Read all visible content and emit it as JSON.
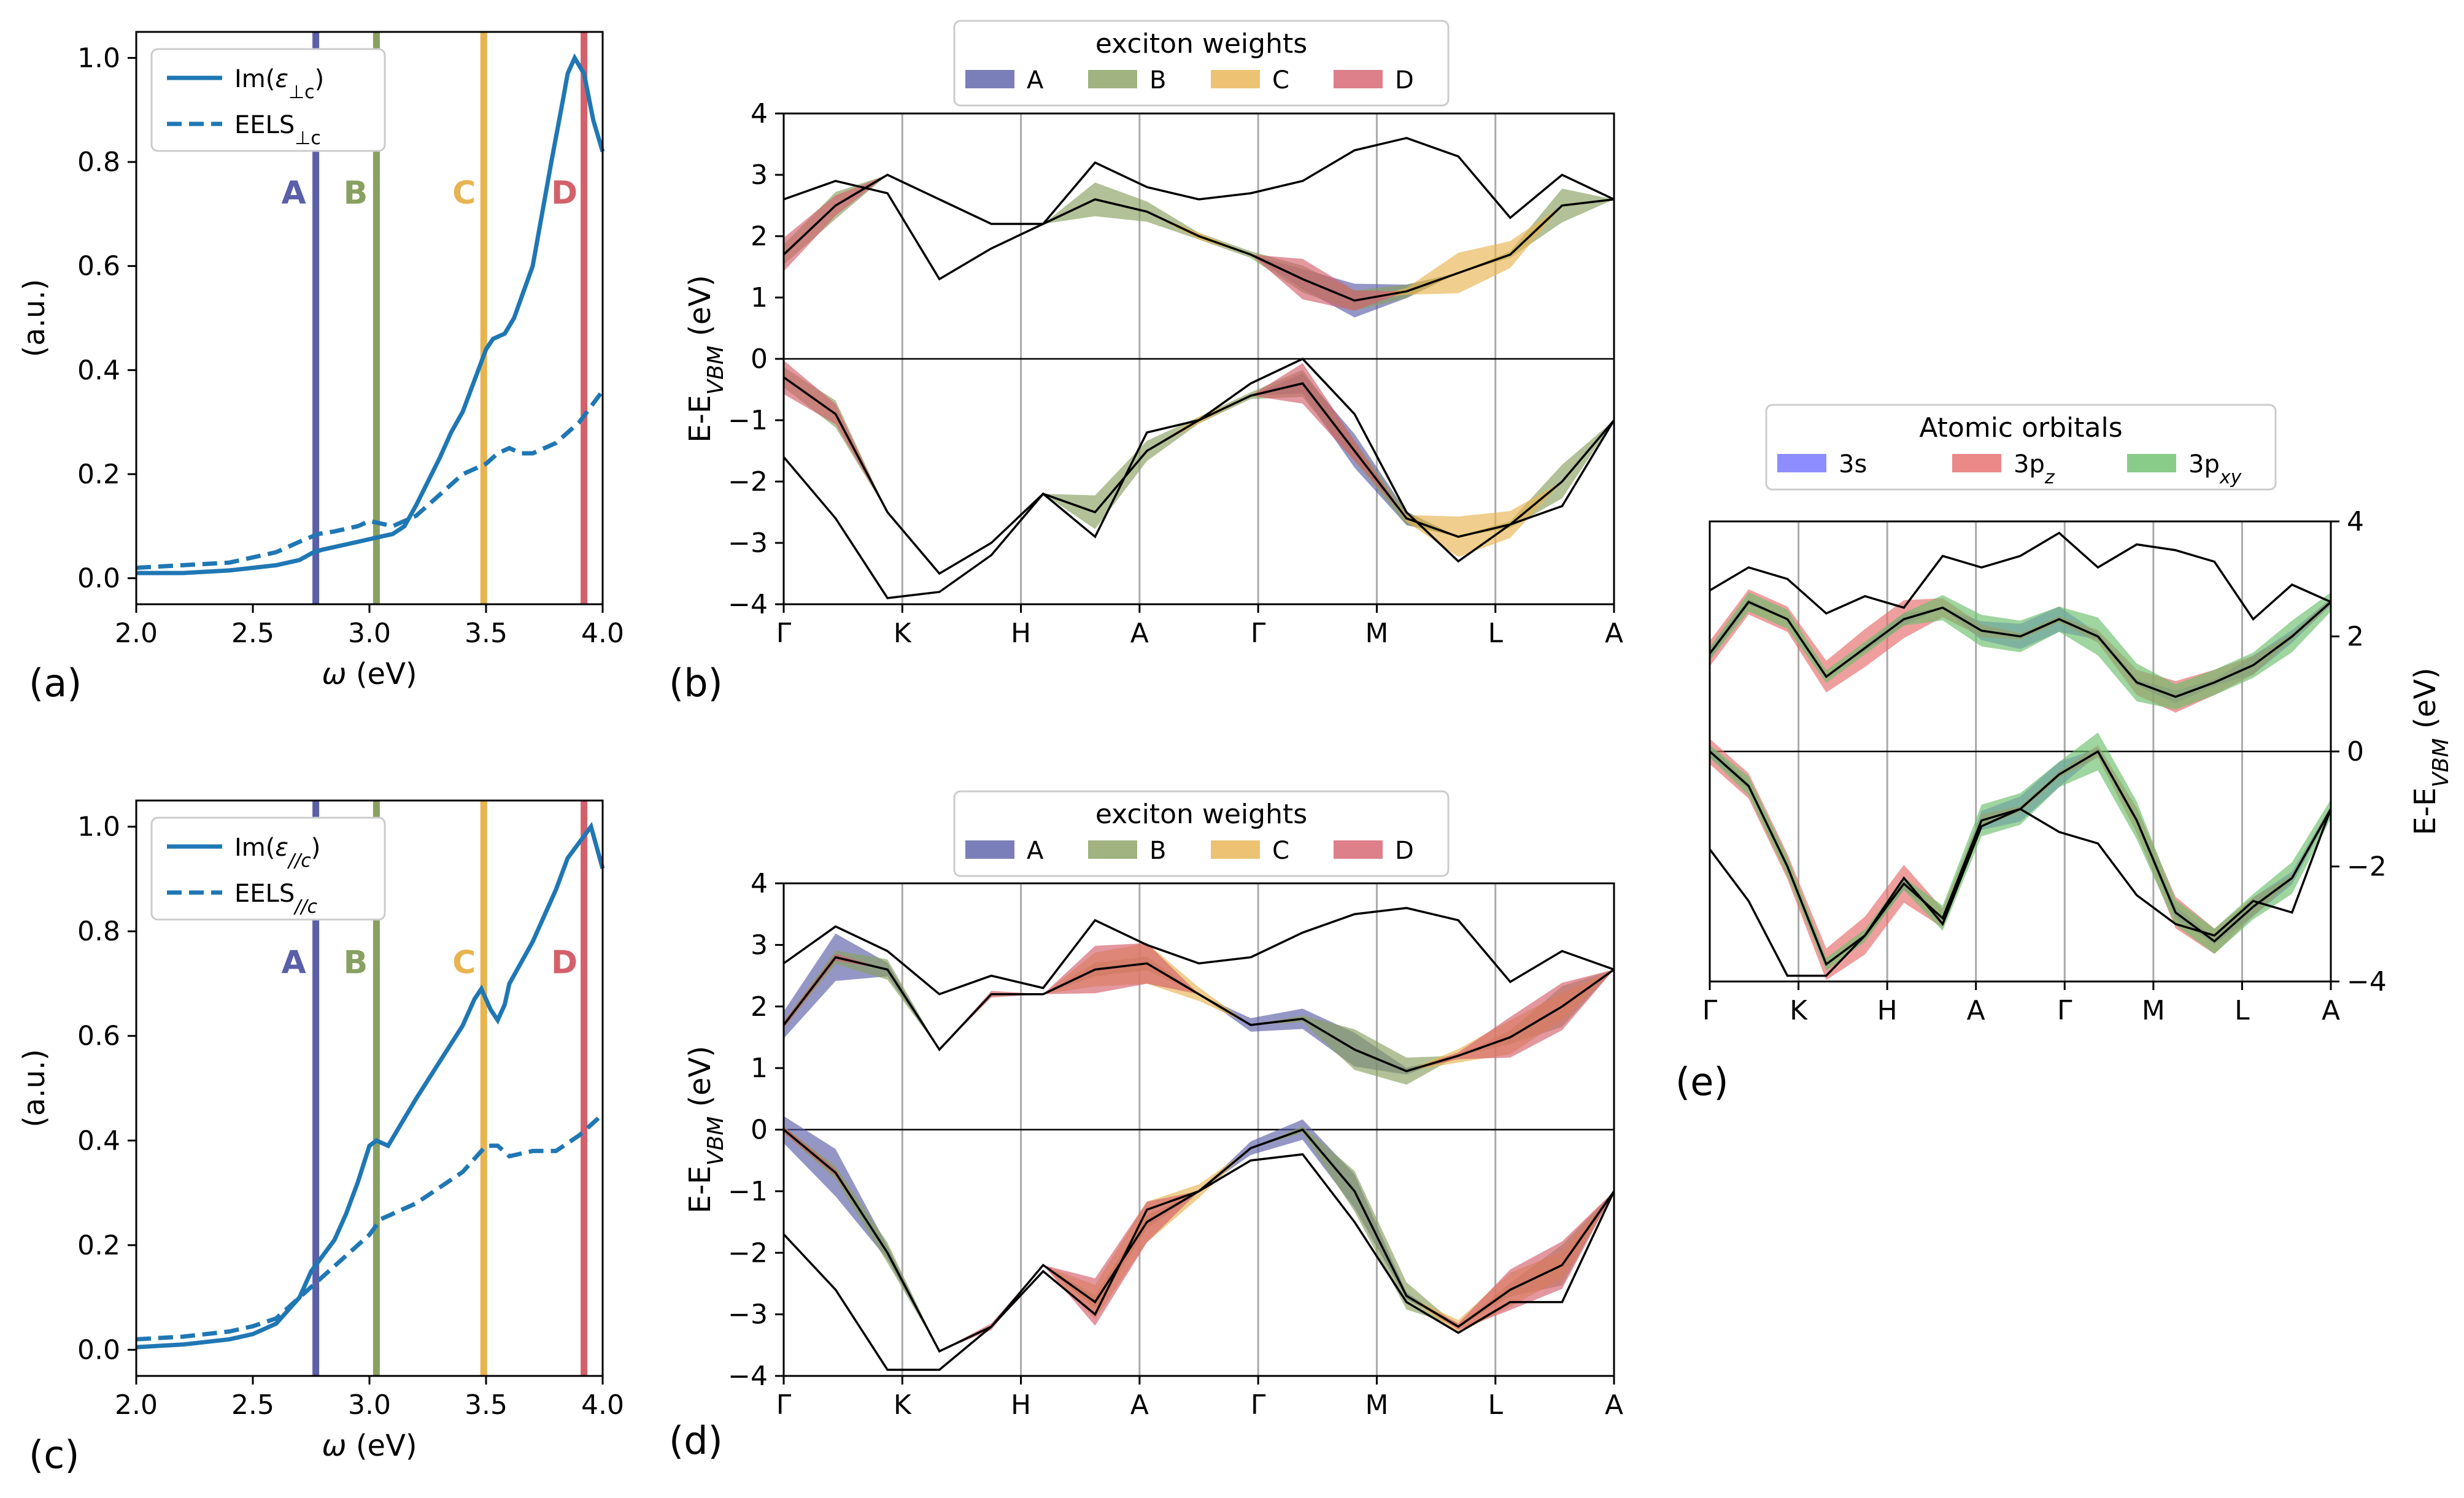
{
  "colors": {
    "curve": "#1f77b4",
    "A": "#5a5fa8",
    "B": "#88a060",
    "C": "#e8b450",
    "D": "#d4606c",
    "orb_3s": "#7070ff",
    "orb_3pz": "#e66a6a",
    "orb_3pxy": "#6cbf6c"
  },
  "chart_data": [
    {
      "id": "a",
      "type": "line",
      "panel_label": "(a)",
      "xlabel": "ω (eV)",
      "ylabel": "(a.u.)",
      "xlim": [
        2.0,
        4.0
      ],
      "ylim": [
        -0.05,
        1.05
      ],
      "xticks": [
        "2.0",
        "2.5",
        "3.0",
        "3.5",
        "4.0"
      ],
      "yticks": [
        "0.0",
        "0.2",
        "0.4",
        "0.6",
        "0.8",
        "1.0"
      ],
      "legend": [
        "Im(ε⊥c)",
        "EELS⊥c"
      ],
      "legend_position": "top-left",
      "series": [
        {
          "name": "Im(ε⊥c)",
          "style": "solid",
          "x": [
            2.0,
            2.2,
            2.4,
            2.6,
            2.7,
            2.76,
            2.8,
            2.9,
            3.0,
            3.05,
            3.1,
            3.15,
            3.2,
            3.3,
            3.35,
            3.4,
            3.45,
            3.5,
            3.53,
            3.58,
            3.62,
            3.7,
            3.78,
            3.83,
            3.85,
            3.88,
            3.92,
            3.96,
            4.0
          ],
          "y": [
            0.01,
            0.01,
            0.015,
            0.025,
            0.035,
            0.05,
            0.055,
            0.065,
            0.075,
            0.08,
            0.085,
            0.1,
            0.14,
            0.23,
            0.28,
            0.32,
            0.38,
            0.44,
            0.46,
            0.47,
            0.5,
            0.6,
            0.8,
            0.92,
            0.97,
            1.0,
            0.97,
            0.88,
            0.82
          ]
        },
        {
          "name": "EELS⊥c",
          "style": "dashed",
          "x": [
            2.0,
            2.2,
            2.4,
            2.6,
            2.7,
            2.78,
            2.85,
            2.95,
            3.0,
            3.05,
            3.1,
            3.2,
            3.3,
            3.4,
            3.5,
            3.55,
            3.6,
            3.65,
            3.7,
            3.8,
            3.9,
            4.0
          ],
          "y": [
            0.02,
            0.025,
            0.03,
            0.05,
            0.07,
            0.085,
            0.09,
            0.1,
            0.11,
            0.105,
            0.1,
            0.12,
            0.16,
            0.2,
            0.22,
            0.24,
            0.25,
            0.24,
            0.24,
            0.26,
            0.3,
            0.36
          ]
        }
      ],
      "vlines": [
        {
          "label": "A",
          "x": 2.77
        },
        {
          "label": "B",
          "x": 3.03
        },
        {
          "label": "C",
          "x": 3.49
        },
        {
          "label": "D",
          "x": 3.92
        }
      ],
      "peak_label_y": 0.72
    },
    {
      "id": "c",
      "type": "line",
      "panel_label": "(c)",
      "xlabel": "ω (eV)",
      "ylabel": "(a.u.)",
      "xlim": [
        2.0,
        4.0
      ],
      "ylim": [
        -0.05,
        1.05
      ],
      "xticks": [
        "2.0",
        "2.5",
        "3.0",
        "3.5",
        "4.0"
      ],
      "yticks": [
        "0.0",
        "0.2",
        "0.4",
        "0.6",
        "0.8",
        "1.0"
      ],
      "legend": [
        "Im(ε//c)",
        "EELS//c"
      ],
      "legend_position": "top-left",
      "series": [
        {
          "name": "Im(ε//c)",
          "style": "solid",
          "x": [
            2.0,
            2.2,
            2.4,
            2.5,
            2.6,
            2.7,
            2.75,
            2.8,
            2.85,
            2.9,
            2.95,
            3.0,
            3.03,
            3.08,
            3.12,
            3.2,
            3.3,
            3.4,
            3.45,
            3.48,
            3.52,
            3.55,
            3.58,
            3.6,
            3.7,
            3.8,
            3.85,
            3.9,
            3.95,
            4.0
          ],
          "y": [
            0.005,
            0.01,
            0.02,
            0.03,
            0.05,
            0.1,
            0.15,
            0.18,
            0.21,
            0.26,
            0.32,
            0.39,
            0.4,
            0.39,
            0.42,
            0.48,
            0.55,
            0.62,
            0.67,
            0.69,
            0.65,
            0.63,
            0.66,
            0.7,
            0.78,
            0.88,
            0.94,
            0.97,
            1.0,
            0.92
          ]
        },
        {
          "name": "EELS//c",
          "style": "dashed",
          "x": [
            2.0,
            2.2,
            2.4,
            2.5,
            2.6,
            2.7,
            2.8,
            2.9,
            3.0,
            3.05,
            3.1,
            3.2,
            3.3,
            3.4,
            3.5,
            3.55,
            3.6,
            3.7,
            3.8,
            3.9,
            4.0
          ],
          "y": [
            0.02,
            0.025,
            0.035,
            0.045,
            0.06,
            0.1,
            0.14,
            0.18,
            0.22,
            0.25,
            0.26,
            0.28,
            0.31,
            0.34,
            0.39,
            0.39,
            0.37,
            0.38,
            0.38,
            0.41,
            0.45
          ]
        }
      ],
      "vlines": [
        {
          "label": "A",
          "x": 2.77
        },
        {
          "label": "B",
          "x": 3.03
        },
        {
          "label": "C",
          "x": 3.49
        },
        {
          "label": "D",
          "x": 3.92
        }
      ],
      "peak_label_y": 0.72
    },
    {
      "id": "b",
      "type": "line",
      "panel_label": "(b)",
      "ylabel": "E-E_VBM (eV)",
      "ylim": [
        -4,
        4
      ],
      "yticks": [
        "−4",
        "−3",
        "−2",
        "−1",
        "0",
        "1",
        "2",
        "3",
        "4"
      ],
      "kpath": [
        "Γ",
        "K",
        "H",
        "A",
        "Γ",
        "M",
        "L",
        "A"
      ],
      "legend_title": "exciton weights",
      "legend": [
        "A",
        "B",
        "C",
        "D"
      ],
      "legend_position": "top-center",
      "bands": [
        [
          1.7,
          2.5,
          3.0,
          2.6,
          2.2,
          2.2,
          2.6,
          2.4,
          2.0,
          1.7,
          1.3,
          0.95,
          1.1,
          1.4,
          1.7,
          2.5,
          2.6
        ],
        [
          -0.3,
          -0.9,
          -2.5,
          -3.5,
          -3.0,
          -2.2,
          -2.5,
          -1.5,
          -1.0,
          -0.6,
          -0.4,
          -1.5,
          -2.6,
          -2.9,
          -2.7,
          -2.0,
          -1.0
        ],
        [
          -1.6,
          -2.6,
          -3.9,
          -3.8,
          -3.2,
          -2.2,
          -2.9,
          -1.2,
          -1.0,
          -0.4,
          0.0,
          -0.9,
          -2.5,
          -3.3,
          -2.7,
          -2.4,
          -1.0
        ],
        [
          2.6,
          2.9,
          2.7,
          1.3,
          1.8,
          2.2,
          3.2,
          2.8,
          2.6,
          2.7,
          2.9,
          3.4,
          3.6,
          3.3,
          2.3,
          3.0,
          2.6
        ]
      ],
      "weights": {
        "A": [
          0,
          0,
          0,
          0,
          0,
          0,
          0,
          0,
          0,
          0,
          0.15,
          0.25,
          0.1,
          0,
          0,
          0,
          0
        ],
        "B": [
          0.15,
          0.2,
          0,
          0,
          0,
          0,
          0.25,
          0.15,
          0.05,
          0.05,
          0.2,
          0.15,
          0.1,
          0,
          0.05,
          0.25,
          0
        ],
        "C": [
          0,
          0,
          0,
          0,
          0,
          0,
          0,
          0,
          0.05,
          0,
          0,
          0,
          0.05,
          0.3,
          0.2,
          0,
          0
        ],
        "D": [
          0.25,
          0.15,
          0,
          0,
          0,
          0,
          0,
          0,
          0,
          0,
          0.3,
          0.15,
          0,
          0,
          0,
          0,
          0
        ]
      }
    },
    {
      "id": "d",
      "type": "line",
      "panel_label": "(d)",
      "ylabel": "E-E_VBM (eV)",
      "ylim": [
        -4,
        4
      ],
      "yticks": [
        "−4",
        "−3",
        "−2",
        "−1",
        "0",
        "1",
        "2",
        "3",
        "4"
      ],
      "kpath": [
        "Γ",
        "K",
        "H",
        "A",
        "Γ",
        "M",
        "L",
        "A"
      ],
      "legend_title": "exciton weights",
      "legend": [
        "A",
        "B",
        "C",
        "D"
      ],
      "legend_position": "top-center",
      "bands": [
        [
          1.7,
          2.8,
          2.6,
          1.3,
          2.2,
          2.2,
          2.6,
          2.7,
          2.2,
          1.7,
          1.8,
          1.3,
          0.95,
          1.2,
          1.5,
          2.0,
          2.6
        ],
        [
          0.0,
          -0.7,
          -2.0,
          -3.6,
          -3.2,
          -2.2,
          -2.8,
          -1.5,
          -1.0,
          -0.3,
          0.0,
          -1.0,
          -2.7,
          -3.2,
          -2.6,
          -2.2,
          -1.0
        ],
        [
          -1.7,
          -2.6,
          -3.9,
          -3.9,
          -3.2,
          -2.3,
          -3.0,
          -1.3,
          -1.0,
          -0.5,
          -0.4,
          -1.5,
          -2.8,
          -3.3,
          -2.8,
          -2.8,
          -1.0
        ],
        [
          2.7,
          3.3,
          2.9,
          2.2,
          2.5,
          2.3,
          3.4,
          3.0,
          2.7,
          2.8,
          3.2,
          3.5,
          3.6,
          3.4,
          2.4,
          2.9,
          2.6
        ]
      ],
      "weights": {
        "A": [
          0.2,
          0.35,
          0.1,
          0,
          0,
          0,
          0,
          0,
          0,
          0.1,
          0.15,
          0.25,
          0.05,
          0,
          0,
          0,
          0
        ],
        "B": [
          0.05,
          0.1,
          0.15,
          0,
          0,
          0,
          0.1,
          0.1,
          0,
          0,
          0.05,
          0.3,
          0.2,
          0,
          0.1,
          0.3,
          0
        ],
        "C": [
          0,
          0,
          0,
          0,
          0,
          0,
          0.25,
          0.3,
          0.1,
          0,
          0,
          0,
          0,
          0.1,
          0.25,
          0.2,
          0
        ],
        "D": [
          0.05,
          0.05,
          0,
          0,
          0.05,
          0,
          0.35,
          0.3,
          0,
          0,
          0,
          0,
          0,
          0.05,
          0.3,
          0.35,
          0
        ]
      }
    },
    {
      "id": "e",
      "type": "line",
      "panel_label": "(e)",
      "ylabel": "E-E_VBM (eV)",
      "ylim": [
        -4,
        4
      ],
      "yticks": [
        "−4",
        "−2",
        "0",
        "2",
        "4"
      ],
      "yaxis_side": "right",
      "kpath": [
        "Γ",
        "K",
        "H",
        "A",
        "Γ",
        "M",
        "L",
        "A"
      ],
      "legend_title": "Atomic orbitals",
      "legend": [
        "3s",
        "3p_z",
        "3p_xy"
      ],
      "legend_position": "top-center",
      "bands": [
        [
          1.7,
          2.6,
          2.3,
          1.3,
          1.8,
          2.3,
          2.5,
          2.1,
          2.0,
          2.3,
          2.0,
          1.2,
          0.95,
          1.2,
          1.5,
          2.0,
          2.6
        ],
        [
          0.0,
          -0.6,
          -2.0,
          -3.7,
          -3.2,
          -2.3,
          -2.9,
          -1.2,
          -1.0,
          -0.4,
          0.0,
          -1.2,
          -2.8,
          -3.3,
          -2.7,
          -2.2,
          -1.0
        ],
        [
          -1.7,
          -2.6,
          -3.9,
          -3.9,
          -3.2,
          -2.2,
          -3.0,
          -1.3,
          -1.0,
          -1.4,
          -1.6,
          -2.5,
          -3.0,
          -3.2,
          -2.6,
          -2.8,
          -1.0
        ],
        [
          2.8,
          3.2,
          3.0,
          2.4,
          2.7,
          2.5,
          3.4,
          3.2,
          3.4,
          3.8,
          3.2,
          3.6,
          3.5,
          3.3,
          2.3,
          2.9,
          2.6
        ]
      ],
      "weights": {
        "3s": [
          0.1,
          0.05,
          0,
          0,
          0.05,
          0.1,
          0,
          0.15,
          0.2,
          0.2,
          0.05,
          0.05,
          0.1,
          0.05,
          0.15,
          0.1,
          0.05
        ],
        "3p_z": [
          0.2,
          0.2,
          0.2,
          0.25,
          0.3,
          0.3,
          0.15,
          0.1,
          0.05,
          0.05,
          0.1,
          0.2,
          0.25,
          0.2,
          0.15,
          0.05,
          0.05
        ],
        "3p_xy": [
          0.1,
          0.15,
          0.15,
          0.1,
          0.1,
          0.1,
          0.2,
          0.25,
          0.25,
          0.2,
          0.3,
          0.3,
          0.2,
          0.2,
          0.2,
          0.25,
          0.15
        ]
      }
    }
  ]
}
